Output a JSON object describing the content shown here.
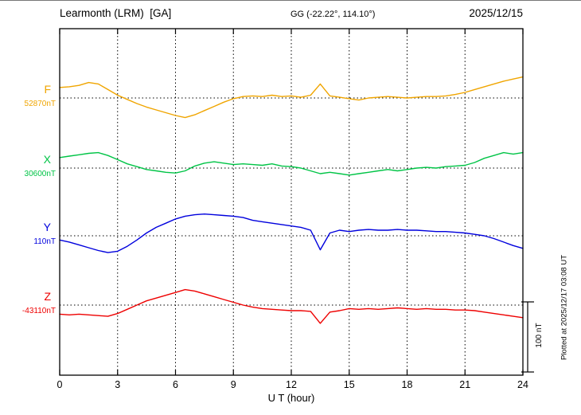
{
  "header": {
    "station": "Learmonth (LRM)  [GA]",
    "coords": "GG (-22.22°, 114.10°)",
    "date": "2025/12/15"
  },
  "side": {
    "plotted": "Plotted at 2025/12/17 03:08 UT"
  },
  "chart_data": {
    "type": "line",
    "title": "Learmonth (LRM) [GA] magnetogram 2025/12/15",
    "xlabel": "U T (hour)",
    "xlim": [
      0,
      24
    ],
    "x_ticks": [
      0,
      3,
      6,
      9,
      12,
      15,
      18,
      21,
      24
    ],
    "grid": "dotted vertical lines every 3 hours; dotted horizontal baseline per trace",
    "legend_position": "left of each trace baseline",
    "scale_bar": {
      "label": "100 nT",
      "nT": 100
    },
    "values_unit": "nT offset from each trace baseline value",
    "x": [
      0,
      0.5,
      1,
      1.5,
      2,
      2.5,
      3,
      3.5,
      4,
      4.5,
      5,
      5.5,
      6,
      6.5,
      7,
      7.5,
      8,
      8.5,
      9,
      9.5,
      10,
      10.5,
      11,
      11.5,
      12,
      12.5,
      13,
      13.5,
      14,
      14.5,
      15,
      15.5,
      16,
      16.5,
      17,
      17.5,
      18,
      18.5,
      19,
      19.5,
      20,
      20.5,
      21,
      21.5,
      22,
      22.5,
      23,
      23.5,
      24
    ],
    "series": [
      {
        "name": "F",
        "base_value_label": "52870nT",
        "base_value": 52870,
        "color": "#f0a500",
        "values": [
          15,
          16,
          18,
          22,
          20,
          12,
          4,
          -2,
          -8,
          -13,
          -17,
          -21,
          -25,
          -28,
          -24,
          -18,
          -12,
          -6,
          -1,
          2,
          3,
          2,
          4,
          2,
          3,
          1,
          4,
          20,
          3,
          1,
          -1,
          -3,
          0,
          1,
          2,
          1,
          0,
          1,
          2,
          2,
          3,
          5,
          8,
          12,
          16,
          20,
          24,
          27,
          30
        ]
      },
      {
        "name": "X",
        "base_value_label": "30600nT",
        "base_value": 30600,
        "color": "#00c446",
        "values": [
          15,
          17,
          19,
          21,
          22,
          18,
          12,
          6,
          2,
          -2,
          -4,
          -6,
          -7,
          -4,
          3,
          7,
          9,
          7,
          5,
          6,
          5,
          4,
          6,
          3,
          2,
          0,
          -4,
          -8,
          -6,
          -8,
          -10,
          -8,
          -6,
          -4,
          -2,
          -4,
          -2,
          0,
          1,
          0,
          2,
          3,
          4,
          8,
          14,
          18,
          22,
          20,
          22
        ]
      },
      {
        "name": "Y",
        "base_value_label": "110nT",
        "base_value": 110,
        "color": "#0000dd",
        "values": [
          -6,
          -9,
          -13,
          -17,
          -21,
          -24,
          -22,
          -15,
          -6,
          4,
          12,
          18,
          24,
          28,
          30,
          31,
          30,
          29,
          28,
          26,
          22,
          20,
          18,
          16,
          14,
          12,
          8,
          -20,
          4,
          8,
          6,
          8,
          9,
          8,
          8,
          9,
          8,
          8,
          7,
          6,
          6,
          5,
          4,
          2,
          0,
          -4,
          -9,
          -14,
          -18
        ]
      },
      {
        "name": "Z",
        "base_value_label": "-43110nT",
        "base_value": -43110,
        "color": "#ee0000",
        "values": [
          -13,
          -14,
          -13,
          -14,
          -15,
          -16,
          -12,
          -6,
          0,
          6,
          10,
          14,
          18,
          22,
          20,
          16,
          12,
          8,
          4,
          0,
          -3,
          -5,
          -6,
          -7,
          -8,
          -8,
          -9,
          -26,
          -10,
          -8,
          -5,
          -6,
          -5,
          -6,
          -5,
          -4,
          -5,
          -6,
          -5,
          -6,
          -6,
          -7,
          -7,
          -8,
          -10,
          -12,
          -14,
          -16,
          -18
        ]
      }
    ]
  }
}
